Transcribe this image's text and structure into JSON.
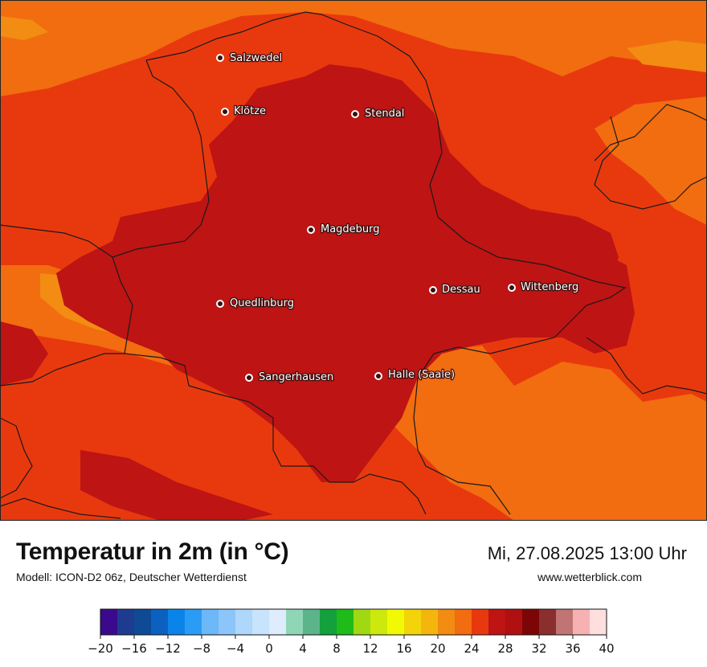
{
  "map": {
    "title": "Temperatur in 2m (in °C)",
    "model": "Modell: ICON-D2 06z, Deutscher Wetterdienst",
    "datetime": "Mi, 27.08.2025 13:00 Uhr",
    "website": "www.wetterblick.com",
    "cities": [
      {
        "name": "Salzwedel"
      },
      {
        "name": "Klötze"
      },
      {
        "name": "Stendal"
      },
      {
        "name": "Magdeburg"
      },
      {
        "name": "Dessau"
      },
      {
        "name": "Wittenberg"
      },
      {
        "name": "Quedlinburg"
      },
      {
        "name": "Sangerhausen"
      },
      {
        "name": "Halle (Saale)"
      }
    ],
    "colors": {
      "temp_22_24": "#f26c10",
      "temp_24_26": "#e8390e",
      "temp_26_28": "#be1414",
      "temp_20_22": "#f28c12",
      "border": "#1a1a1a"
    }
  },
  "colorbar": {
    "ticks": [
      "−20",
      "−16",
      "−12",
      "−8",
      "−4",
      "0",
      "4",
      "8",
      "12",
      "16",
      "20",
      "24",
      "28",
      "32",
      "36",
      "40"
    ],
    "colors": [
      "#3b0a8c",
      "#1d3c8f",
      "#0f4a96",
      "#0b60c0",
      "#0a84e8",
      "#2a9cf5",
      "#6cb8f8",
      "#8cc5f9",
      "#aed7fb",
      "#c8e3fc",
      "#deecfd",
      "#8fd6b6",
      "#5cb48a",
      "#14a03c",
      "#1fbb19",
      "#a0d812",
      "#cde80c",
      "#f1fa04",
      "#f3d40a",
      "#f4b60c",
      "#f28c12",
      "#f26c10",
      "#e8390e",
      "#be1414",
      "#b01010",
      "#7c0606",
      "#8a2e2e",
      "#c07474",
      "#f6b2b2",
      "#ffdede"
    ]
  }
}
